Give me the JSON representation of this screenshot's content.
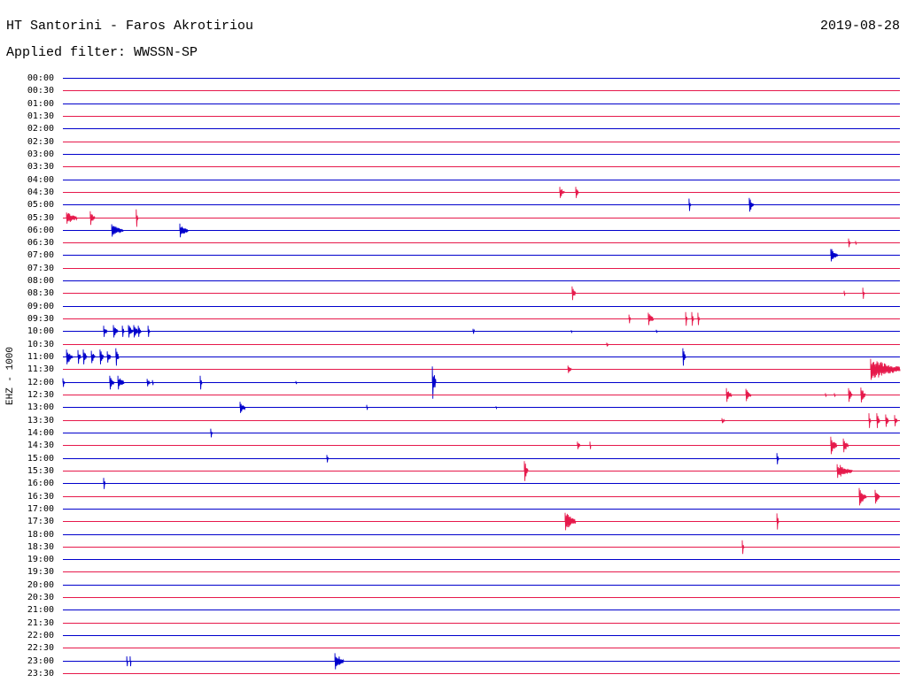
{
  "header": {
    "date": "2019-08-28",
    "filter": "Applied filter: WWSSN-SP"
  },
  "colors": {
    "background": "#ffffff",
    "hour_rows": "#0000cc",
    "half_hour_rows": "#e6194b"
  },
  "chart_data": {
    "type": "line",
    "title": "HT Santorini - Faros Akrotiriou",
    "ylabel": "EHZ - 1000",
    "xlim": [
      0,
      30
    ],
    "rows": [
      {
        "label": "00:00",
        "events": []
      },
      {
        "label": "00:30",
        "events": []
      },
      {
        "label": "01:00",
        "events": []
      },
      {
        "label": "01:30",
        "events": []
      },
      {
        "label": "02:00",
        "events": []
      },
      {
        "label": "02:30",
        "events": []
      },
      {
        "label": "03:00",
        "events": []
      },
      {
        "label": "03:30",
        "events": []
      },
      {
        "label": "04:00",
        "events": []
      },
      {
        "label": "04:30",
        "events": [
          {
            "start": 17.81,
            "dur": 0.16,
            "amp": 0.45
          },
          {
            "start": 18.38,
            "dur": 0.1,
            "amp": 0.45
          }
        ]
      },
      {
        "label": "05:00",
        "events": [
          {
            "start": 22.44,
            "dur": 0.06,
            "amp": 0.5
          },
          {
            "start": 24.6,
            "dur": 0.16,
            "amp": 0.55
          }
        ]
      },
      {
        "label": "05:30",
        "events": [
          {
            "start": 0.13,
            "dur": 0.38,
            "amp": 0.45
          },
          {
            "start": 0.98,
            "dur": 0.16,
            "amp": 0.55
          },
          {
            "start": 2.63,
            "dur": 0.06,
            "amp": 0.7
          }
        ]
      },
      {
        "label": "06:00",
        "events": [
          {
            "start": 1.75,
            "dur": 0.41,
            "amp": 0.5
          },
          {
            "start": 4.19,
            "dur": 0.29,
            "amp": 0.55
          }
        ]
      },
      {
        "label": "06:30",
        "events": [
          {
            "start": 28.16,
            "dur": 0.06,
            "amp": 0.35
          },
          {
            "start": 28.41,
            "dur": 0.03,
            "amp": 0.15
          }
        ]
      },
      {
        "label": "07:00",
        "events": [
          {
            "start": 27.52,
            "dur": 0.25,
            "amp": 0.5
          }
        ]
      },
      {
        "label": "07:30",
        "events": []
      },
      {
        "label": "08:00",
        "events": []
      },
      {
        "label": "08:30",
        "events": [
          {
            "start": 18.25,
            "dur": 0.13,
            "amp": 0.55
          },
          {
            "start": 28.0,
            "dur": 0.03,
            "amp": 0.2
          },
          {
            "start": 28.67,
            "dur": 0.06,
            "amp": 0.45
          }
        ]
      },
      {
        "label": "09:00",
        "events": []
      },
      {
        "label": "09:30",
        "events": [
          {
            "start": 20.29,
            "dur": 0.06,
            "amp": 0.35
          },
          {
            "start": 20.98,
            "dur": 0.19,
            "amp": 0.5
          },
          {
            "start": 22.32,
            "dur": 0.06,
            "amp": 0.55
          },
          {
            "start": 22.54,
            "dur": 0.06,
            "amp": 0.55
          },
          {
            "start": 22.76,
            "dur": 0.06,
            "amp": 0.5
          }
        ]
      },
      {
        "label": "10:00",
        "events": [
          {
            "start": 1.46,
            "dur": 0.13,
            "amp": 0.45
          },
          {
            "start": 1.81,
            "dur": 0.16,
            "amp": 0.5
          },
          {
            "start": 2.13,
            "dur": 0.06,
            "amp": 0.45
          },
          {
            "start": 2.35,
            "dur": 0.16,
            "amp": 0.5
          },
          {
            "start": 2.54,
            "dur": 0.16,
            "amp": 0.5
          },
          {
            "start": 2.7,
            "dur": 0.1,
            "amp": 0.45
          },
          {
            "start": 3.05,
            "dur": 0.06,
            "amp": 0.45
          },
          {
            "start": 14.7,
            "dur": 0.06,
            "amp": 0.2
          },
          {
            "start": 18.22,
            "dur": 0.03,
            "amp": 0.08
          },
          {
            "start": 21.27,
            "dur": 0.03,
            "amp": 0.12
          }
        ]
      },
      {
        "label": "10:30",
        "events": [
          {
            "start": 19.49,
            "dur": 0.06,
            "amp": 0.15
          }
        ]
      },
      {
        "label": "11:00",
        "events": [
          {
            "start": 0.13,
            "dur": 0.22,
            "amp": 0.6
          },
          {
            "start": 0.54,
            "dur": 0.1,
            "amp": 0.55
          },
          {
            "start": 0.73,
            "dur": 0.13,
            "amp": 0.6
          },
          {
            "start": 1.02,
            "dur": 0.13,
            "amp": 0.5
          },
          {
            "start": 1.33,
            "dur": 0.13,
            "amp": 0.6
          },
          {
            "start": 1.59,
            "dur": 0.13,
            "amp": 0.45
          },
          {
            "start": 1.9,
            "dur": 0.1,
            "amp": 0.7
          },
          {
            "start": 22.22,
            "dur": 0.1,
            "amp": 0.7
          }
        ]
      },
      {
        "label": "11:30",
        "events": [
          {
            "start": 18.1,
            "dur": 0.13,
            "amp": 0.3
          },
          {
            "start": 28.95,
            "dur": 1.05,
            "amp": 0.85
          }
        ]
      },
      {
        "label": "12:00",
        "events": [
          {
            "start": 0.0,
            "dur": 0.06,
            "amp": 0.35
          },
          {
            "start": 1.68,
            "dur": 0.16,
            "amp": 0.55
          },
          {
            "start": 1.97,
            "dur": 0.22,
            "amp": 0.55
          },
          {
            "start": 3.02,
            "dur": 0.1,
            "amp": 0.3
          },
          {
            "start": 3.21,
            "dur": 0.03,
            "amp": 0.2
          },
          {
            "start": 4.92,
            "dur": 0.06,
            "amp": 0.55
          },
          {
            "start": 8.35,
            "dur": 0.03,
            "amp": 0.12
          },
          {
            "start": 13.24,
            "dur": 0.13,
            "amp": 1.3
          }
        ]
      },
      {
        "label": "12:30",
        "events": [
          {
            "start": 23.78,
            "dur": 0.19,
            "amp": 0.55
          },
          {
            "start": 24.48,
            "dur": 0.19,
            "amp": 0.5
          },
          {
            "start": 27.33,
            "dur": 0.03,
            "amp": 0.15
          },
          {
            "start": 27.65,
            "dur": 0.03,
            "amp": 0.15
          },
          {
            "start": 28.16,
            "dur": 0.13,
            "amp": 0.55
          },
          {
            "start": 28.6,
            "dur": 0.16,
            "amp": 0.6
          }
        ]
      },
      {
        "label": "13:00",
        "events": [
          {
            "start": 6.35,
            "dur": 0.19,
            "amp": 0.45
          },
          {
            "start": 10.89,
            "dur": 0.03,
            "amp": 0.2
          },
          {
            "start": 15.52,
            "dur": 0.03,
            "amp": 0.08
          }
        ]
      },
      {
        "label": "13:30",
        "events": [
          {
            "start": 23.62,
            "dur": 0.1,
            "amp": 0.2
          },
          {
            "start": 28.89,
            "dur": 0.06,
            "amp": 0.6
          },
          {
            "start": 29.17,
            "dur": 0.1,
            "amp": 0.6
          },
          {
            "start": 29.49,
            "dur": 0.1,
            "amp": 0.5
          },
          {
            "start": 29.81,
            "dur": 0.1,
            "amp": 0.45
          }
        ]
      },
      {
        "label": "14:00",
        "events": [
          {
            "start": 5.3,
            "dur": 0.06,
            "amp": 0.35
          }
        ]
      },
      {
        "label": "14:30",
        "events": [
          {
            "start": 18.44,
            "dur": 0.1,
            "amp": 0.3
          },
          {
            "start": 18.89,
            "dur": 0.03,
            "amp": 0.3
          },
          {
            "start": 27.52,
            "dur": 0.22,
            "amp": 0.7
          },
          {
            "start": 27.97,
            "dur": 0.19,
            "amp": 0.55
          }
        ]
      },
      {
        "label": "15:00",
        "events": [
          {
            "start": 9.46,
            "dur": 0.06,
            "amp": 0.3
          },
          {
            "start": 25.59,
            "dur": 0.06,
            "amp": 0.45
          }
        ]
      },
      {
        "label": "15:30",
        "events": [
          {
            "start": 16.54,
            "dur": 0.13,
            "amp": 0.8
          },
          {
            "start": 27.75,
            "dur": 0.54,
            "amp": 0.55
          }
        ]
      },
      {
        "label": "16:00",
        "events": [
          {
            "start": 1.46,
            "dur": 0.06,
            "amp": 0.45
          }
        ]
      },
      {
        "label": "16:30",
        "events": [
          {
            "start": 28.54,
            "dur": 0.25,
            "amp": 0.7
          },
          {
            "start": 29.11,
            "dur": 0.16,
            "amp": 0.55
          }
        ]
      },
      {
        "label": "17:00",
        "events": []
      },
      {
        "label": "17:30",
        "events": [
          {
            "start": 18.0,
            "dur": 0.38,
            "amp": 0.7
          },
          {
            "start": 25.59,
            "dur": 0.06,
            "amp": 0.65
          }
        ]
      },
      {
        "label": "18:00",
        "events": []
      },
      {
        "label": "18:30",
        "events": [
          {
            "start": 24.35,
            "dur": 0.06,
            "amp": 0.55
          }
        ]
      },
      {
        "label": "19:00",
        "events": []
      },
      {
        "label": "19:30",
        "events": []
      },
      {
        "label": "20:00",
        "events": []
      },
      {
        "label": "20:30",
        "events": []
      },
      {
        "label": "21:00",
        "events": []
      },
      {
        "label": "21:30",
        "events": []
      },
      {
        "label": "22:00",
        "events": []
      },
      {
        "label": "22:30",
        "events": []
      },
      {
        "label": "23:00",
        "events": [
          {
            "start": 2.29,
            "dur": 0.03,
            "amp": 0.4
          },
          {
            "start": 2.41,
            "dur": 0.03,
            "amp": 0.4
          },
          {
            "start": 9.75,
            "dur": 0.32,
            "amp": 0.65
          }
        ]
      },
      {
        "label": "23:30",
        "events": []
      }
    ]
  }
}
